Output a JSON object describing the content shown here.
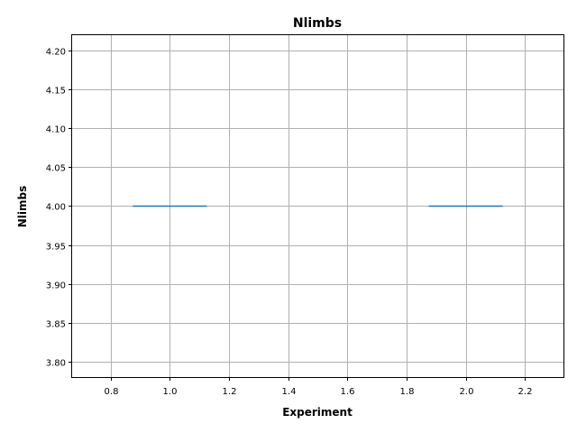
{
  "chart_data": {
    "type": "box",
    "title": "Nlimbs",
    "xlabel": "Experiment",
    "ylabel": "Nlimbs",
    "xlim": [
      0.67,
      2.33
    ],
    "ylim": [
      3.78,
      4.22
    ],
    "xticks": [
      "0.8",
      "1.0",
      "1.2",
      "1.4",
      "1.6",
      "1.8",
      "2.0",
      "2.2"
    ],
    "yticks": [
      "3.80",
      "3.85",
      "3.90",
      "3.95",
      "4.00",
      "4.05",
      "4.10",
      "4.15",
      "4.20"
    ],
    "grid": true,
    "series": [
      {
        "positions": [
          1,
          2
        ],
        "values": [
          4.0,
          4.0
        ],
        "box_halfwidth": 0.125,
        "color": "#1f77b4"
      }
    ]
  }
}
